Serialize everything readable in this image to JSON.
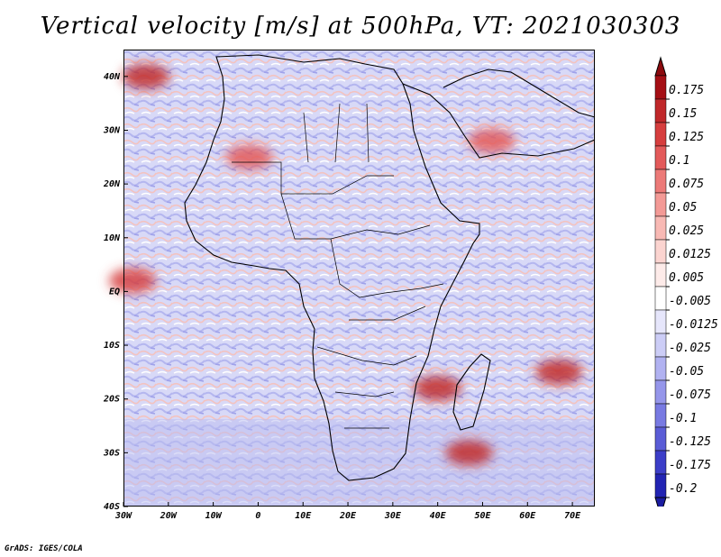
{
  "title": "Vertical velocity [m/s] at 500hPa, VT: 2021030303",
  "credit": "GrADS: IGES/COLA",
  "map": {
    "lon_range": [
      -30,
      75
    ],
    "lat_range": [
      -40,
      45
    ],
    "lat_ticks": [
      {
        "value": 40,
        "label": "40N"
      },
      {
        "value": 30,
        "label": "30N"
      },
      {
        "value": 20,
        "label": "20N"
      },
      {
        "value": 10,
        "label": "10N"
      },
      {
        "value": 0,
        "label": "EQ"
      },
      {
        "value": -10,
        "label": "10S"
      },
      {
        "value": -20,
        "label": "20S"
      },
      {
        "value": -30,
        "label": "30S"
      },
      {
        "value": -40,
        "label": "40S"
      }
    ],
    "lon_ticks": [
      {
        "value": -30,
        "label": "30W"
      },
      {
        "value": -20,
        "label": "20W"
      },
      {
        "value": -10,
        "label": "10W"
      },
      {
        "value": 0,
        "label": "0"
      },
      {
        "value": 10,
        "label": "10E"
      },
      {
        "value": 20,
        "label": "20E"
      },
      {
        "value": 30,
        "label": "30E"
      },
      {
        "value": 40,
        "label": "40E"
      },
      {
        "value": 50,
        "label": "50E"
      },
      {
        "value": 60,
        "label": "60E"
      },
      {
        "value": 70,
        "label": "70E"
      }
    ]
  },
  "colorbar": {
    "levels": [
      {
        "label": "0.175",
        "color": "#a50f15"
      },
      {
        "label": "0.15",
        "color": "#c0282a"
      },
      {
        "label": "0.125",
        "color": "#d63e3e"
      },
      {
        "label": "0.1",
        "color": "#e35a5a"
      },
      {
        "label": "0.075",
        "color": "#ec7a78"
      },
      {
        "label": "0.05",
        "color": "#f39a96"
      },
      {
        "label": "0.025",
        "color": "#f8b9b4"
      },
      {
        "label": "0.0125",
        "color": "#fbd4d0"
      },
      {
        "label": "0.005",
        "color": "#fdebe9"
      },
      {
        "label": "-0.005",
        "color": "#ffffff"
      },
      {
        "label": "-0.0125",
        "color": "#e6e6fb"
      },
      {
        "label": "-0.025",
        "color": "#cccdf6"
      },
      {
        "label": "-0.05",
        "color": "#b1b2f1"
      },
      {
        "label": "-0.075",
        "color": "#9596ea"
      },
      {
        "label": "-0.1",
        "color": "#787ae2"
      },
      {
        "label": "-0.125",
        "color": "#5a5cd6"
      },
      {
        "label": "-0.175",
        "color": "#3c3ec8"
      },
      {
        "label": "-0.2",
        "color": "#2224b3"
      }
    ],
    "top_arrow_color": "#8c0a0e",
    "bottom_arrow_color": "#1a1ca0"
  },
  "features": [
    {
      "name": "strong-ascent-mediterranean",
      "lon": -25,
      "lat": 40,
      "value": 0.15
    },
    {
      "name": "ascent-band-sahara",
      "lon": -2,
      "lat": 25,
      "value": 0.1
    },
    {
      "name": "ascent-atlantic-equatorial",
      "lon": -28,
      "lat": 2,
      "value": 0.125
    },
    {
      "name": "strong-ascent-mozambique-channel",
      "lon": 40,
      "lat": -18,
      "value": 0.15
    },
    {
      "name": "strong-ascent-south-indian-ocean",
      "lon": 67,
      "lat": -15,
      "value": 0.15
    },
    {
      "name": "strong-ascent-madagascar-south",
      "lon": 47,
      "lat": -30,
      "value": 0.15
    },
    {
      "name": "ascent-arabian-peninsula",
      "lon": 52,
      "lat": 28,
      "value": 0.1
    }
  ]
}
